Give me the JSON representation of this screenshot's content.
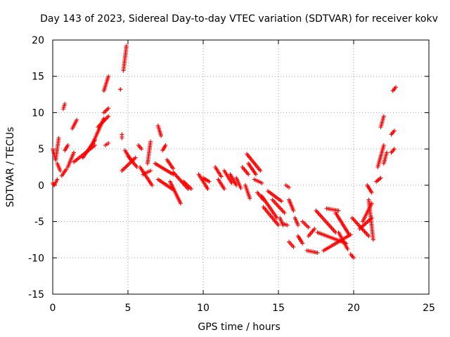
{
  "chart_data": {
    "type": "scatter",
    "title": "Day 143 of 2023, Sidereal Day-to-day VTEC variation (SDTVAR) for receiver kokv",
    "xlabel": "GPS time / hours",
    "ylabel": "SDTVAR / TECUs",
    "xlim": [
      0,
      25
    ],
    "ylim": [
      -15,
      20
    ],
    "xticks": [
      "0",
      "5",
      "10",
      "15",
      "20",
      "25"
    ],
    "yticks": [
      "-15",
      "-10",
      "-5",
      "0",
      "5",
      "10",
      "15",
      "20"
    ],
    "grid": true,
    "marker": "plus",
    "color": "#ff0000",
    "segments": [
      {
        "x": [
          0.0,
          0.2,
          0.4
        ],
        "y": [
          5.0,
          3.5,
          6.5
        ]
      },
      {
        "x": [
          0.0,
          0.1,
          0.3
        ],
        "y": [
          0.3,
          0.0,
          0.8
        ]
      },
      {
        "x": [
          0.3,
          0.5
        ],
        "y": [
          3.0,
          2.0
        ]
      },
      {
        "x": [
          0.6,
          0.9
        ],
        "y": [
          1.3,
          2.2
        ]
      },
      {
        "x": [
          0.7,
          0.8
        ],
        "y": [
          10.5,
          11.2
        ]
      },
      {
        "x": [
          0.8,
          1.0
        ],
        "y": [
          4.8,
          5.5
        ]
      },
      {
        "x": [
          1.0,
          1.4
        ],
        "y": [
          2.5,
          4.5
        ]
      },
      {
        "x": [
          1.3,
          1.6
        ],
        "y": [
          7.8,
          9.0
        ]
      },
      {
        "x": [
          1.4,
          2.8
        ],
        "y": [
          3.2,
          5.5
        ]
      },
      {
        "x": [
          2.0,
          2.8
        ],
        "y": [
          3.8,
          6.2
        ]
      },
      {
        "x": [
          2.6,
          3.4
        ],
        "y": [
          5.5,
          9.2
        ]
      },
      {
        "x": [
          3.0,
          3.7
        ],
        "y": [
          8.0,
          9.5
        ]
      },
      {
        "x": [
          3.4,
          3.7
        ],
        "y": [
          10.0,
          10.6
        ]
      },
      {
        "x": [
          3.4,
          3.7
        ],
        "y": [
          13.0,
          15.0
        ]
      },
      {
        "x": [
          3.5,
          3.7
        ],
        "y": [
          5.5,
          5.8
        ]
      },
      {
        "x": [
          4.5,
          4.5
        ],
        "y": [
          13.2,
          13.2
        ]
      },
      {
        "x": [
          4.6,
          4.6
        ],
        "y": [
          6.5,
          7.0
        ]
      },
      {
        "x": [
          4.7,
          4.9
        ],
        "y": [
          15.8,
          19.2
        ]
      },
      {
        "x": [
          4.8,
          5.2
        ],
        "y": [
          4.8,
          3.5
        ]
      },
      {
        "x": [
          4.6,
          5.5
        ],
        "y": [
          2.0,
          3.8
        ]
      },
      {
        "x": [
          5.0,
          5.6
        ],
        "y": [
          4.0,
          2.5
        ]
      },
      {
        "x": [
          5.7,
          5.9
        ],
        "y": [
          5.5,
          5.0
        ]
      },
      {
        "x": [
          5.8,
          6.6
        ],
        "y": [
          2.5,
          0.0
        ]
      },
      {
        "x": [
          6.0,
          6.5
        ],
        "y": [
          1.5,
          2.0
        ]
      },
      {
        "x": [
          6.3,
          6.5
        ],
        "y": [
          3.0,
          6.0
        ]
      },
      {
        "x": [
          7.0,
          7.2
        ],
        "y": [
          8.2,
          6.8
        ]
      },
      {
        "x": [
          6.8,
          8.0
        ],
        "y": [
          3.0,
          1.5
        ]
      },
      {
        "x": [
          7.3,
          7.5
        ],
        "y": [
          4.8,
          5.5
        ]
      },
      {
        "x": [
          7.0,
          8.0
        ],
        "y": [
          0.8,
          -0.6
        ]
      },
      {
        "x": [
          7.6,
          8.0
        ],
        "y": [
          3.5,
          2.3
        ]
      },
      {
        "x": [
          7.8,
          8.5
        ],
        "y": [
          0.5,
          -2.5
        ]
      },
      {
        "x": [
          8.0,
          9.0
        ],
        "y": [
          1.8,
          -0.5
        ]
      },
      {
        "x": [
          8.7,
          9.2
        ],
        "y": [
          0.5,
          -0.5
        ]
      },
      {
        "x": [
          9.7,
          10.3
        ],
        "y": [
          1.5,
          -0.5
        ]
      },
      {
        "x": [
          10.0,
          10.4
        ],
        "y": [
          1.0,
          0.5
        ]
      },
      {
        "x": [
          10.8,
          11.2
        ],
        "y": [
          2.5,
          1.2
        ]
      },
      {
        "x": [
          11.0,
          11.4
        ],
        "y": [
          0.8,
          -0.5
        ]
      },
      {
        "x": [
          11.4,
          11.9
        ],
        "y": [
          2.0,
          0.3
        ]
      },
      {
        "x": [
          11.8,
          12.2
        ],
        "y": [
          1.5,
          0.0
        ]
      },
      {
        "x": [
          12.2,
          12.5
        ],
        "y": [
          1.0,
          -0.4
        ]
      },
      {
        "x": [
          12.8,
          13.1
        ],
        "y": [
          0.0,
          -1.8
        ]
      },
      {
        "x": [
          12.6,
          13.0
        ],
        "y": [
          2.5,
          1.5
        ]
      },
      {
        "x": [
          12.9,
          13.8
        ],
        "y": [
          4.3,
          2.0
        ]
      },
      {
        "x": [
          13.0,
          13.5
        ],
        "y": [
          3.0,
          1.5
        ]
      },
      {
        "x": [
          13.4,
          13.9
        ],
        "y": [
          0.8,
          0.3
        ]
      },
      {
        "x": [
          13.6,
          14.0
        ],
        "y": [
          -1.0,
          -2.0
        ]
      },
      {
        "x": [
          13.9,
          14.9
        ],
        "y": [
          -1.5,
          -4.5
        ]
      },
      {
        "x": [
          14.0,
          15.0
        ],
        "y": [
          -3.0,
          -5.5
        ]
      },
      {
        "x": [
          14.3,
          15.2
        ],
        "y": [
          -0.8,
          -2.2
        ]
      },
      {
        "x": [
          14.6,
          15.4
        ],
        "y": [
          -2.0,
          -3.8
        ]
      },
      {
        "x": [
          15.1,
          15.3
        ],
        "y": [
          -4.5,
          -5.5
        ]
      },
      {
        "x": [
          15.3,
          15.6
        ],
        "y": [
          -5.3,
          -5.5
        ]
      },
      {
        "x": [
          15.5,
          15.7
        ],
        "y": [
          0.0,
          -0.3
        ]
      },
      {
        "x": [
          15.7,
          16.0
        ],
        "y": [
          -7.8,
          -8.5
        ]
      },
      {
        "x": [
          15.7,
          16.0
        ],
        "y": [
          -2.0,
          -3.5
        ]
      },
      {
        "x": [
          16.1,
          16.3
        ],
        "y": [
          -4.5,
          -5.5
        ]
      },
      {
        "x": [
          16.3,
          16.6
        ],
        "y": [
          -7.0,
          -8.0
        ]
      },
      {
        "x": [
          16.6,
          17.0
        ],
        "y": [
          -5.0,
          -5.8
        ]
      },
      {
        "x": [
          16.9,
          17.6
        ],
        "y": [
          -9.0,
          -9.3
        ]
      },
      {
        "x": [
          17.0,
          17.4
        ],
        "y": [
          -7.0,
          -6.0
        ]
      },
      {
        "x": [
          17.5,
          18.8
        ],
        "y": [
          -3.5,
          -6.5
        ]
      },
      {
        "x": [
          18.2,
          19.0
        ],
        "y": [
          -3.2,
          -3.5
        ]
      },
      {
        "x": [
          18.8,
          19.7
        ],
        "y": [
          -3.8,
          -6.8
        ]
      },
      {
        "x": [
          17.6,
          19.5
        ],
        "y": [
          -6.5,
          -8.0
        ]
      },
      {
        "x": [
          19.0,
          19.6
        ],
        "y": [
          -6.5,
          -8.8
        ]
      },
      {
        "x": [
          18.0,
          19.8
        ],
        "y": [
          -9.0,
          -6.8
        ]
      },
      {
        "x": [
          19.8,
          20.0
        ],
        "y": [
          -9.5,
          -10.0
        ]
      },
      {
        "x": [
          19.9,
          21.0
        ],
        "y": [
          -4.5,
          -7.0
        ]
      },
      {
        "x": [
          20.4,
          21.2
        ],
        "y": [
          -6.0,
          -4.5
        ]
      },
      {
        "x": [
          20.6,
          21.2
        ],
        "y": [
          -5.0,
          -2.5
        ]
      },
      {
        "x": [
          21.0,
          21.3
        ],
        "y": [
          -2.0,
          -7.5
        ]
      },
      {
        "x": [
          20.9,
          21.2
        ],
        "y": [
          0.0,
          -1.0
        ]
      },
      {
        "x": [
          21.5,
          21.8
        ],
        "y": [
          0.5,
          1.0
        ]
      },
      {
        "x": [
          21.6,
          22.0
        ],
        "y": [
          2.5,
          5.5
        ]
      },
      {
        "x": [
          21.8,
          22.0
        ],
        "y": [
          8.0,
          9.5
        ]
      },
      {
        "x": [
          22.0,
          22.2
        ],
        "y": [
          3.0,
          4.5
        ]
      },
      {
        "x": [
          22.5,
          22.7
        ],
        "y": [
          4.5,
          5.0
        ]
      },
      {
        "x": [
          22.5,
          22.7
        ],
        "y": [
          7.0,
          7.5
        ]
      },
      {
        "x": [
          22.6,
          22.8
        ],
        "y": [
          13.0,
          13.5
        ]
      }
    ]
  }
}
